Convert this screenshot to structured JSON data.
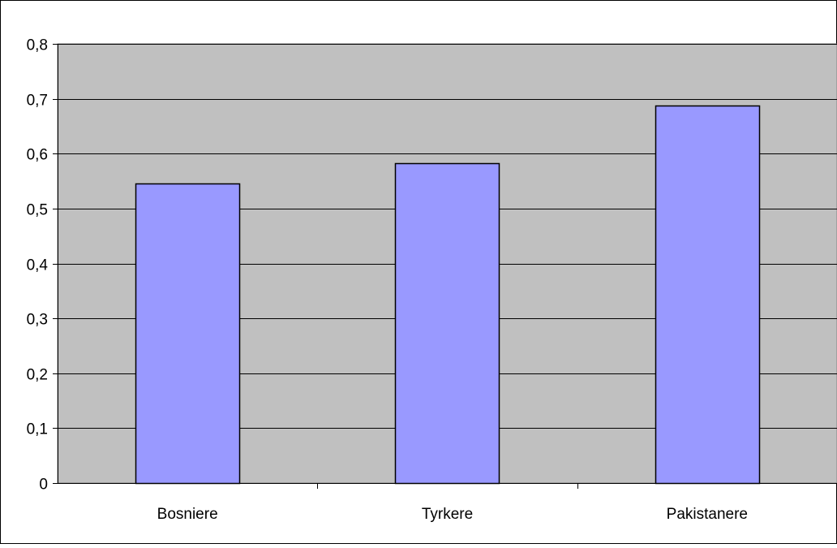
{
  "chart_data": {
    "type": "bar",
    "categories": [
      "Bosniere",
      "Tyrkere",
      "Pakistanere"
    ],
    "values": [
      0.545,
      0.583,
      0.687
    ],
    "ylim": [
      0,
      0.8
    ],
    "yticks": [
      0,
      0.1,
      0.2,
      0.3,
      0.4,
      0.5,
      0.6,
      0.7,
      0.8
    ],
    "ytick_labels": [
      "0",
      "0,1",
      "0,2",
      "0,3",
      "0,4",
      "0,5",
      "0,6",
      "0,7",
      "0,8"
    ],
    "grid": true,
    "title": "",
    "xlabel": "",
    "ylabel": "",
    "colors": {
      "bar_fill": "#9999ff",
      "bar_stroke": "#000000",
      "plot_background": "#c0c0c0",
      "gridline": "#000000"
    }
  }
}
